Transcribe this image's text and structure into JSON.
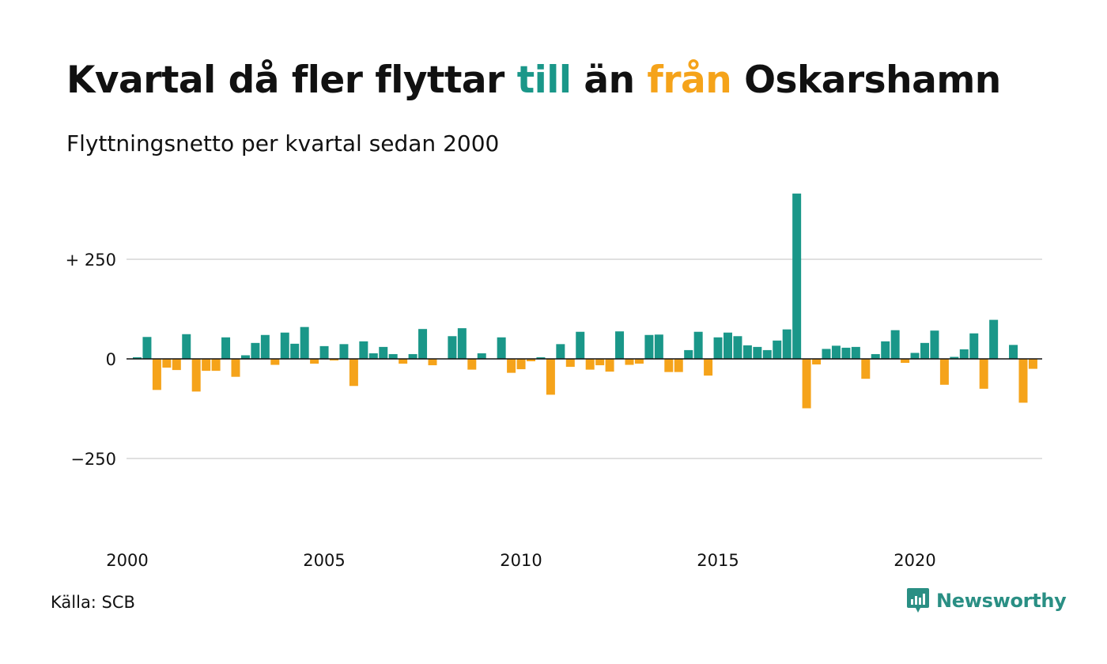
{
  "title": {
    "part1": "Kvartal då fler flyttar ",
    "till": "till",
    "part2": " än ",
    "fran": "från",
    "part3": " Oskarshamn"
  },
  "subtitle": "Flyttningsnetto per kvartal sedan 2000",
  "source": "Källa: SCB",
  "logo_text": "Newsworthy",
  "colors": {
    "positive": "#1a9789",
    "negative": "#f5a31a",
    "grid": "#e0e0e0",
    "zero_line": "#111111",
    "text": "#111111"
  },
  "chart_data": {
    "type": "bar",
    "title": "Kvartal då fler flyttar till än från Oskarshamn",
    "subtitle": "Flyttningsnetto per kvartal sedan 2000",
    "x_start": 2000,
    "x_step": 0.25,
    "x_ticks": [
      2000,
      2005,
      2010,
      2015,
      2020
    ],
    "y_ticks": [
      {
        "value": 250,
        "label": "+ 250"
      },
      {
        "value": 0,
        "label": "0"
      },
      {
        "value": -250,
        "label": "−250"
      }
    ],
    "ylim": [
      -450,
      420
    ],
    "grid": true,
    "values": [
      4,
      55,
      -78,
      -22,
      -28,
      62,
      -82,
      -30,
      -30,
      54,
      -45,
      9,
      40,
      60,
      -15,
      66,
      38,
      80,
      -12,
      32,
      -4,
      37,
      -68,
      44,
      14,
      30,
      12,
      -12,
      12,
      75,
      -16,
      0,
      57,
      77,
      -27,
      14,
      0,
      54,
      -35,
      -26,
      -6,
      4,
      -90,
      37,
      -20,
      68,
      -27,
      -16,
      -32,
      69,
      -15,
      -12,
      60,
      61,
      -33,
      -33,
      22,
      68,
      -42,
      54,
      66,
      57,
      34,
      30,
      22,
      46,
      74,
      415,
      -124,
      -14,
      25,
      33,
      28,
      30,
      -50,
      12,
      44,
      72,
      -10,
      15,
      40,
      71,
      -65,
      5,
      24,
      64,
      -75,
      98,
      0,
      35,
      -110,
      -25
    ]
  }
}
